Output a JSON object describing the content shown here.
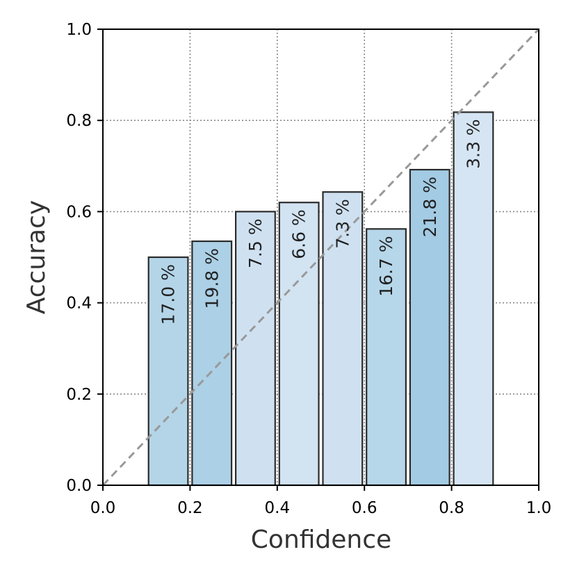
{
  "chart_data": {
    "type": "bar",
    "xlabel": "Confidence",
    "ylabel": "Accuracy",
    "xlim": [
      0.0,
      1.0
    ],
    "ylim": [
      0.0,
      1.0
    ],
    "xticks": [
      "0.0",
      "0.2",
      "0.4",
      "0.6",
      "0.8",
      "1.0"
    ],
    "yticks": [
      "0.0",
      "0.2",
      "0.4",
      "0.6",
      "0.8",
      "1.0"
    ],
    "grid": true,
    "bins": [
      {
        "x_start": 0.1,
        "x_end": 0.2,
        "value": 0.5,
        "label": "17.0 %",
        "color": "#b4d5e8"
      },
      {
        "x_start": 0.2,
        "x_end": 0.3,
        "value": 0.535,
        "label": "19.8 %",
        "color": "#acd0e6"
      },
      {
        "x_start": 0.3,
        "x_end": 0.4,
        "value": 0.6,
        "label": "7.5 %",
        "color": "#cfe1f1"
      },
      {
        "x_start": 0.4,
        "x_end": 0.5,
        "value": 0.62,
        "label": "6.6 %",
        "color": "#d2e3f2"
      },
      {
        "x_start": 0.5,
        "x_end": 0.6,
        "value": 0.643,
        "label": "7.3 %",
        "color": "#cfe1f1"
      },
      {
        "x_start": 0.6,
        "x_end": 0.7,
        "value": 0.562,
        "label": "16.7 %",
        "color": "#b6d6e9"
      },
      {
        "x_start": 0.7,
        "x_end": 0.8,
        "value": 0.692,
        "label": "21.8 %",
        "color": "#a3cbe3"
      },
      {
        "x_start": 0.8,
        "x_end": 0.9,
        "value": 0.818,
        "label": "3.3 %",
        "color": "#d5e5f3"
      }
    ],
    "reference_line": {
      "from": [
        0.0,
        0.0
      ],
      "to": [
        1.0,
        1.0
      ],
      "style": "dashed",
      "color": "#999999"
    },
    "colors": {
      "bar_edge": "#2b2b2b",
      "grid": "#888888",
      "axis": "#000000"
    }
  }
}
